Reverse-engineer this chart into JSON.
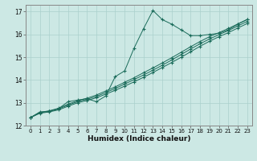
{
  "xlabel": "Humidex (Indice chaleur)",
  "xlim": [
    -0.5,
    23.5
  ],
  "ylim": [
    12,
    17.3
  ],
  "yticks": [
    12,
    13,
    14,
    15,
    16,
    17
  ],
  "xticks": [
    0,
    1,
    2,
    3,
    4,
    5,
    6,
    7,
    8,
    9,
    10,
    11,
    12,
    13,
    14,
    15,
    16,
    17,
    18,
    19,
    20,
    21,
    22,
    23
  ],
  "bg_color": "#cce8e4",
  "grid_color": "#aad0cc",
  "line_color": "#1a6b5a",
  "line_main": [
    12.35,
    12.6,
    12.62,
    12.75,
    13.05,
    13.12,
    13.18,
    13.05,
    13.3,
    14.15,
    14.4,
    15.4,
    16.25,
    17.05,
    16.65,
    16.45,
    16.2,
    15.95,
    15.95,
    16.0,
    16.05,
    16.2,
    16.45,
    16.65
  ],
  "line_ref1": [
    12.35,
    12.54,
    12.6,
    12.69,
    12.85,
    13.0,
    13.1,
    13.22,
    13.38,
    13.55,
    13.73,
    13.92,
    14.12,
    14.33,
    14.55,
    14.77,
    15.0,
    15.24,
    15.48,
    15.7,
    15.9,
    16.08,
    16.28,
    16.48
  ],
  "line_ref2": [
    12.35,
    12.56,
    12.63,
    12.73,
    12.9,
    13.05,
    13.15,
    13.28,
    13.45,
    13.63,
    13.82,
    14.02,
    14.22,
    14.43,
    14.65,
    14.88,
    15.12,
    15.36,
    15.59,
    15.8,
    15.99,
    16.17,
    16.37,
    16.57
  ],
  "line_ref3": [
    12.35,
    12.58,
    12.65,
    12.76,
    12.94,
    13.09,
    13.2,
    13.34,
    13.52,
    13.7,
    13.9,
    14.1,
    14.32,
    14.53,
    14.75,
    14.98,
    15.22,
    15.46,
    15.69,
    15.9,
    16.08,
    16.26,
    16.46,
    16.66
  ]
}
